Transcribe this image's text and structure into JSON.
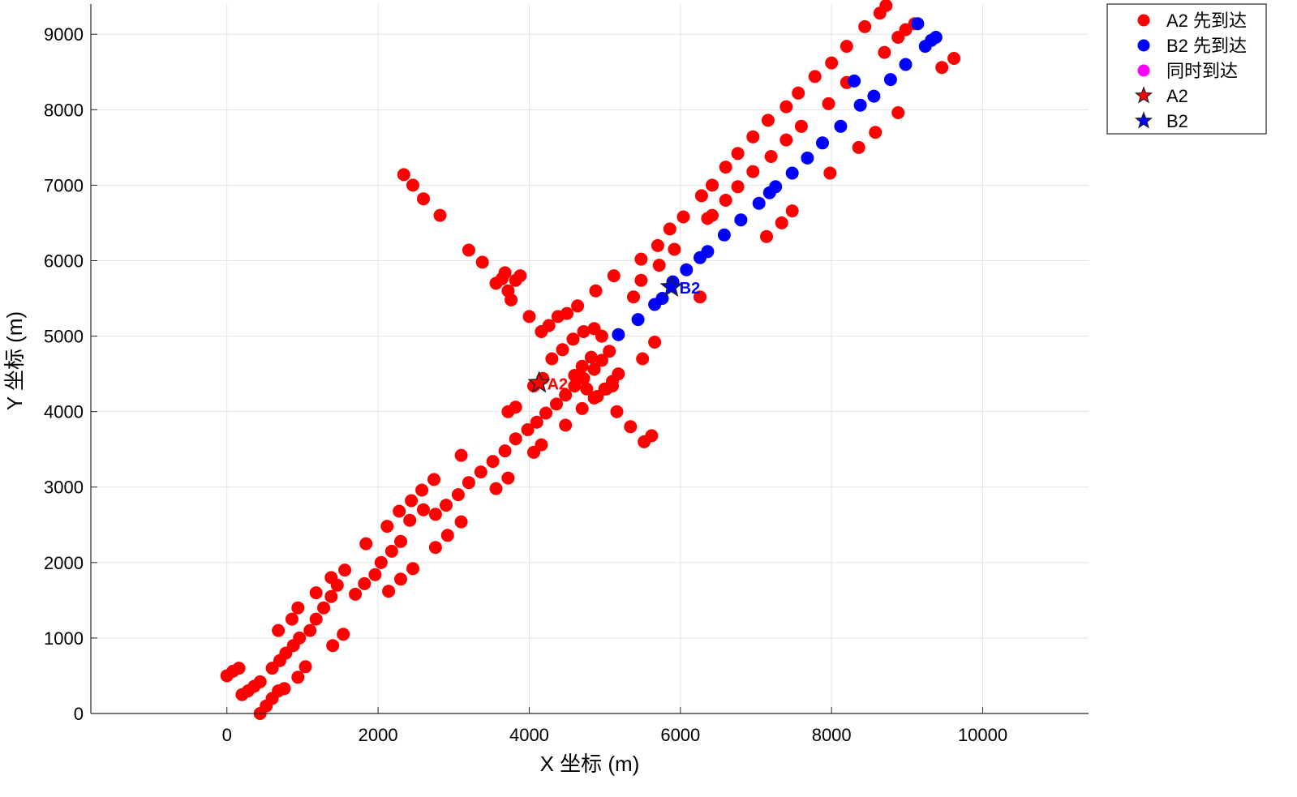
{
  "chart_data": {
    "type": "scatter",
    "xlabel": "X 坐标 (m)",
    "ylabel": "Y 坐标 (m)",
    "xlim": [
      -1800,
      11400
    ],
    "ylim": [
      0,
      9400
    ],
    "xticks": [
      0,
      2000,
      4000,
      6000,
      8000,
      10000
    ],
    "yticks": [
      0,
      1000,
      2000,
      3000,
      4000,
      5000,
      6000,
      7000,
      8000,
      9000
    ],
    "grid": true,
    "legend_position": "top-right, outside plot area",
    "legend": [
      {
        "label": "A2 先到达",
        "marker": "circle",
        "color": "#ff0000"
      },
      {
        "label": "B2 先到达",
        "marker": "circle",
        "color": "#0000ff"
      },
      {
        "label": "同时到达",
        "marker": "circle",
        "color": "#ff00ff"
      },
      {
        "label": "A2",
        "marker": "star",
        "color": "#ff0000"
      },
      {
        "label": "B2",
        "marker": "star",
        "color": "#0000ff"
      }
    ],
    "series": [
      {
        "name": "A2 先到达",
        "color": "#ff0000",
        "points": [
          [
            0,
            500
          ],
          [
            80,
            560
          ],
          [
            160,
            600
          ],
          [
            200,
            250
          ],
          [
            280,
            300
          ],
          [
            360,
            360
          ],
          [
            440,
            420
          ],
          [
            440,
            0
          ],
          [
            520,
            100
          ],
          [
            600,
            200
          ],
          [
            680,
            300
          ],
          [
            600,
            600
          ],
          [
            700,
            700
          ],
          [
            780,
            800
          ],
          [
            880,
            900
          ],
          [
            960,
            1000
          ],
          [
            680,
            1100
          ],
          [
            860,
            1250
          ],
          [
            940,
            1400
          ],
          [
            1100,
            1100
          ],
          [
            1180,
            1250
          ],
          [
            1280,
            1400
          ],
          [
            1380,
            1550
          ],
          [
            1460,
            1700
          ],
          [
            1560,
            1900
          ],
          [
            1040,
            620
          ],
          [
            940,
            480
          ],
          [
            760,
            330
          ],
          [
            1400,
            900
          ],
          [
            1540,
            1050
          ],
          [
            1180,
            1600
          ],
          [
            1380,
            1800
          ],
          [
            1700,
            1580
          ],
          [
            1820,
            1720
          ],
          [
            1960,
            1840
          ],
          [
            1840,
            2250
          ],
          [
            2040,
            2000
          ],
          [
            2180,
            2150
          ],
          [
            2300,
            2280
          ],
          [
            2120,
            2480
          ],
          [
            2280,
            2680
          ],
          [
            2440,
            2820
          ],
          [
            2580,
            2960
          ],
          [
            2740,
            3100
          ],
          [
            2420,
            2560
          ],
          [
            2600,
            2700
          ],
          [
            2760,
            2640
          ],
          [
            2900,
            2760
          ],
          [
            3060,
            2900
          ],
          [
            3200,
            3060
          ],
          [
            3360,
            3200
          ],
          [
            3520,
            3340
          ],
          [
            3680,
            3480
          ],
          [
            3820,
            3640
          ],
          [
            3100,
            3420
          ],
          [
            2140,
            1620
          ],
          [
            2300,
            1780
          ],
          [
            2460,
            1920
          ],
          [
            2760,
            2200
          ],
          [
            2920,
            2360
          ],
          [
            3100,
            2540
          ],
          [
            3560,
            2980
          ],
          [
            3720,
            3120
          ],
          [
            3720,
            4000
          ],
          [
            3820,
            4060
          ],
          [
            3980,
            3760
          ],
          [
            4100,
            3860
          ],
          [
            4220,
            3980
          ],
          [
            4360,
            4100
          ],
          [
            4480,
            4220
          ],
          [
            4600,
            4340
          ],
          [
            4720,
            4440
          ],
          [
            4860,
            4560
          ],
          [
            4960,
            4680
          ],
          [
            5060,
            4800
          ],
          [
            4160,
            3560
          ],
          [
            4060,
            3460
          ],
          [
            4480,
            3820
          ],
          [
            4700,
            4040
          ],
          [
            4860,
            4180
          ],
          [
            5020,
            4300
          ],
          [
            5100,
            4400
          ],
          [
            5180,
            4500
          ],
          [
            5160,
            4000
          ],
          [
            5340,
            3800
          ],
          [
            5520,
            3600
          ],
          [
            5620,
            3680
          ],
          [
            4060,
            4340
          ],
          [
            4180,
            4440
          ],
          [
            4300,
            4700
          ],
          [
            4440,
            4820
          ],
          [
            4580,
            4960
          ],
          [
            4720,
            5060
          ],
          [
            4860,
            5100
          ],
          [
            4960,
            5000
          ],
          [
            4820,
            4720
          ],
          [
            4700,
            4600
          ],
          [
            4600,
            4480
          ],
          [
            4760,
            4300
          ],
          [
            4900,
            4200
          ],
          [
            5000,
            4300
          ],
          [
            5100,
            4340
          ],
          [
            5500,
            4700
          ],
          [
            5660,
            4920
          ],
          [
            4160,
            5060
          ],
          [
            4260,
            5140
          ],
          [
            4380,
            5260
          ],
          [
            4500,
            5300
          ],
          [
            4640,
            5400
          ],
          [
            4880,
            5600
          ],
          [
            5120,
            5800
          ],
          [
            5380,
            5520
          ],
          [
            5480,
            5740
          ],
          [
            5720,
            5940
          ],
          [
            5920,
            6150
          ],
          [
            5480,
            6020
          ],
          [
            5700,
            6200
          ],
          [
            5860,
            6420
          ],
          [
            6040,
            6580
          ],
          [
            6280,
            6860
          ],
          [
            6420,
            7000
          ],
          [
            6600,
            7240
          ],
          [
            6760,
            7420
          ],
          [
            6960,
            7640
          ],
          [
            7160,
            7860
          ],
          [
            7400,
            8040
          ],
          [
            7560,
            8220
          ],
          [
            7780,
            8440
          ],
          [
            8000,
            8620
          ],
          [
            8200,
            8840
          ],
          [
            8440,
            9100
          ],
          [
            8640,
            9280
          ],
          [
            8720,
            9380
          ],
          [
            8880,
            8960
          ],
          [
            8980,
            9060
          ],
          [
            9100,
            9140
          ],
          [
            6360,
            6560
          ],
          [
            6420,
            6600
          ],
          [
            6600,
            6800
          ],
          [
            6760,
            6980
          ],
          [
            6960,
            7180
          ],
          [
            7200,
            7380
          ],
          [
            7400,
            7600
          ],
          [
            7600,
            7780
          ],
          [
            7960,
            8080
          ],
          [
            8200,
            8360
          ],
          [
            8700,
            8760
          ],
          [
            7340,
            6500
          ],
          [
            7480,
            6660
          ],
          [
            7140,
            6320
          ],
          [
            7980,
            7160
          ],
          [
            8360,
            7500
          ],
          [
            8580,
            7700
          ],
          [
            8880,
            7960
          ],
          [
            9460,
            8560
          ],
          [
            9620,
            8680
          ],
          [
            6260,
            5520
          ],
          [
            4000,
            5260
          ],
          [
            3200,
            6140
          ],
          [
            3380,
            5980
          ],
          [
            3560,
            5700
          ],
          [
            3640,
            5760
          ],
          [
            3720,
            5600
          ],
          [
            3820,
            5740
          ],
          [
            3880,
            5800
          ],
          [
            3760,
            5480
          ],
          [
            3680,
            5840
          ],
          [
            2340,
            7140
          ],
          [
            2460,
            7000
          ],
          [
            2600,
            6820
          ],
          [
            2820,
            6600
          ]
        ]
      },
      {
        "name": "B2 先到达",
        "color": "#0000ff",
        "points": [
          [
            5180,
            5020
          ],
          [
            5440,
            5220
          ],
          [
            5660,
            5420
          ],
          [
            5760,
            5500
          ],
          [
            5900,
            5720
          ],
          [
            6080,
            5880
          ],
          [
            6260,
            6040
          ],
          [
            6360,
            6120
          ],
          [
            6580,
            6340
          ],
          [
            6800,
            6540
          ],
          [
            7040,
            6760
          ],
          [
            7180,
            6900
          ],
          [
            7260,
            6980
          ],
          [
            7480,
            7160
          ],
          [
            7680,
            7360
          ],
          [
            7880,
            7560
          ],
          [
            8120,
            7780
          ],
          [
            8300,
            8380
          ],
          [
            8380,
            8060
          ],
          [
            8560,
            8180
          ],
          [
            8780,
            8400
          ],
          [
            8980,
            8600
          ],
          [
            9140,
            9140
          ],
          [
            9240,
            8840
          ],
          [
            9320,
            8920
          ],
          [
            9380,
            8960
          ]
        ]
      },
      {
        "name": "同时到达",
        "color": "#ff00ff",
        "points": []
      }
    ],
    "markers": [
      {
        "name": "A2",
        "x": 4130,
        "y": 4380,
        "color": "#ff0000",
        "label": "A2"
      },
      {
        "name": "B2",
        "x": 5880,
        "y": 5650,
        "color": "#0000ff",
        "label": "B2"
      }
    ]
  }
}
